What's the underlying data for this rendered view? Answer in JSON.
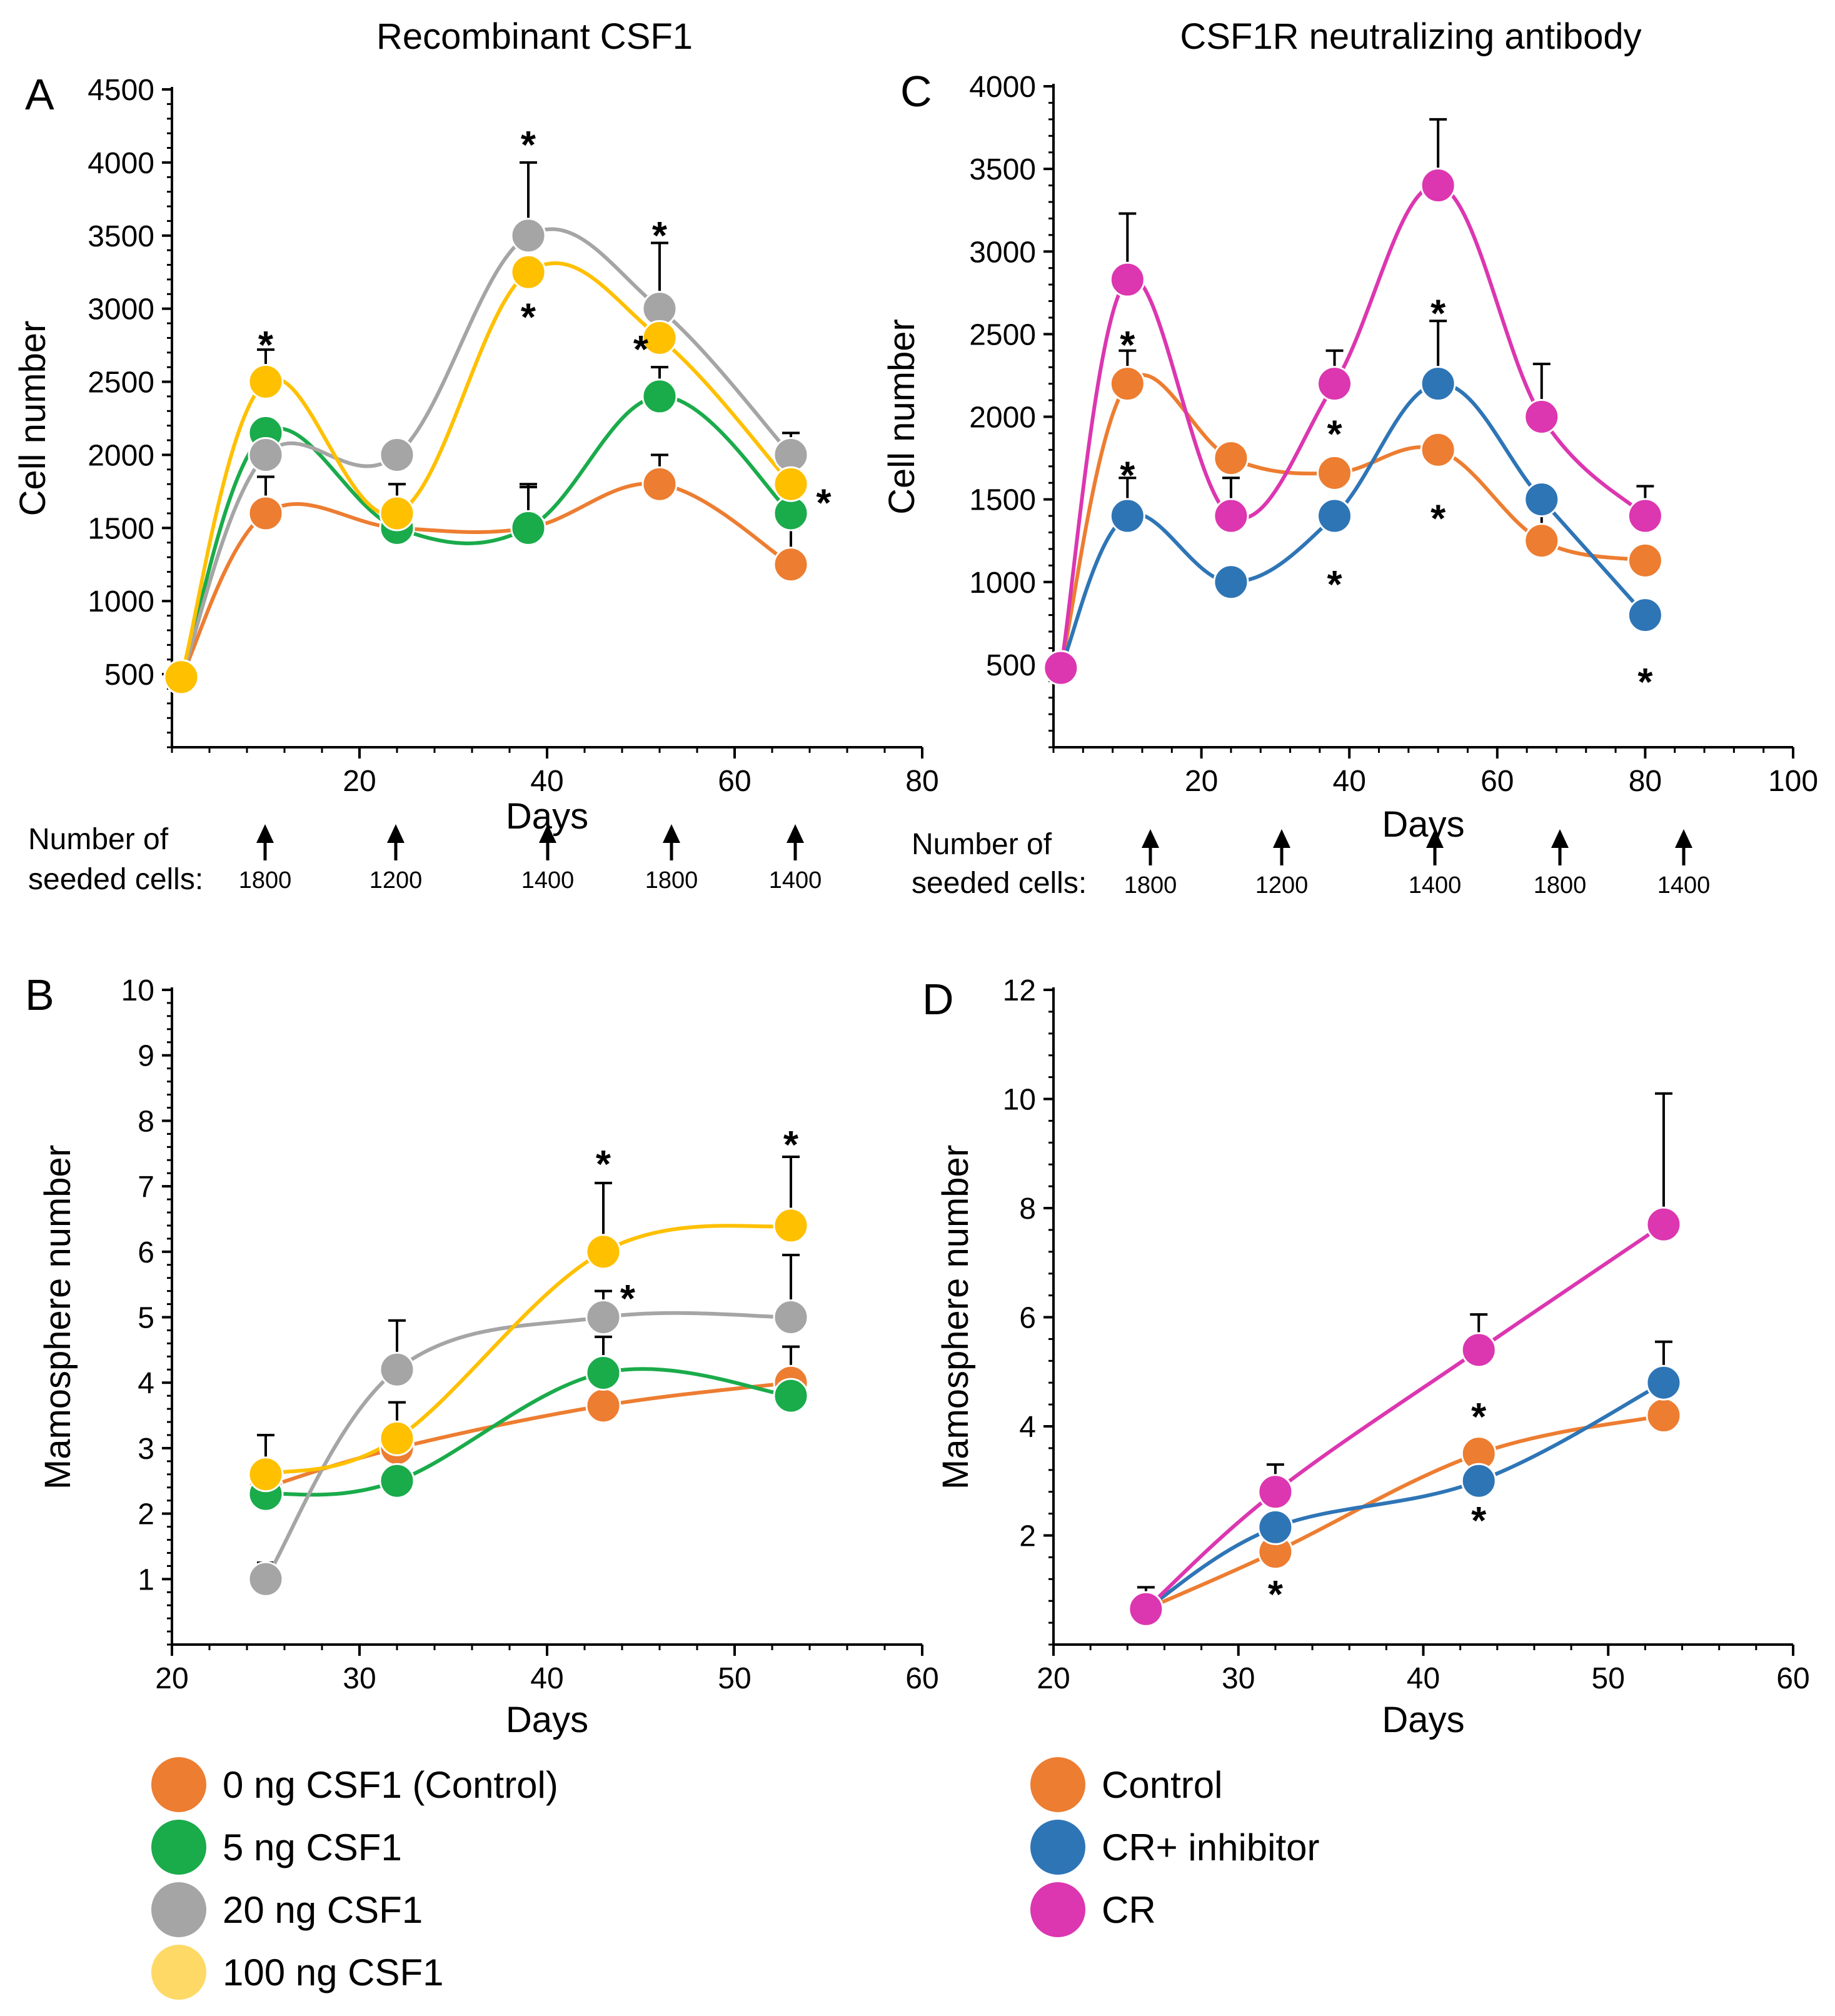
{
  "chart_data": [
    {
      "id": "A",
      "type": "line",
      "panel_letter": "A",
      "title": "Recombinant CSF1",
      "xlabel": "Days",
      "ylabel": "Cell number",
      "xlim": [
        0,
        80
      ],
      "ylim": [
        0,
        4500
      ],
      "xticks": [
        20,
        40,
        60,
        80
      ],
      "yticks": [
        500,
        1000,
        1500,
        2000,
        2500,
        3000,
        3500,
        4000,
        4500
      ],
      "series": [
        {
          "name": "0 ng CSF1 (Control)",
          "color": "#ED7D31",
          "x": [
            1,
            10,
            24,
            38,
            52,
            66
          ],
          "y": [
            480,
            1600,
            1500,
            1500,
            1800,
            1250
          ],
          "err": [
            0,
            250,
            300,
            300,
            200,
            250
          ]
        },
        {
          "name": "5 ng CSF1",
          "color": "#1AAB4B",
          "x": [
            1,
            10,
            24,
            38,
            52,
            66
          ],
          "y": [
            480,
            2150,
            1500,
            1500,
            2400,
            1600
          ],
          "err": [
            0,
            0,
            0,
            280,
            200,
            0
          ]
        },
        {
          "name": "20 ng CSF1",
          "color": "#A5A5A5",
          "x": [
            1,
            10,
            24,
            38,
            52,
            66
          ],
          "y": [
            480,
            2000,
            2000,
            3500,
            3000,
            2000
          ],
          "err": [
            0,
            0,
            0,
            500,
            450,
            150
          ]
        },
        {
          "name": "100 ng CSF1",
          "color": "#FFC000",
          "x": [
            1,
            10,
            24,
            38,
            52,
            66
          ],
          "y": [
            480,
            2500,
            1600,
            3250,
            2800,
            1800
          ],
          "err": [
            0,
            220,
            0,
            0,
            0,
            0
          ]
        }
      ],
      "annotations": [
        {
          "text": "*",
          "x": 10,
          "y": 2780
        },
        {
          "text": "*",
          "x": 38,
          "y": 4150
        },
        {
          "text": "*",
          "x": 38,
          "y": 2970
        },
        {
          "text": "*",
          "x": 52,
          "y": 3530
        },
        {
          "text": "*",
          "x": 50,
          "y": 2750
        },
        {
          "text": "*",
          "x": 69.5,
          "y": 1700
        }
      ],
      "seeded": {
        "label_line1": "Number of",
        "label_line2": "seeded cells:",
        "values": [
          "1800",
          "1200",
          "1400",
          "1800",
          "1400"
        ]
      }
    },
    {
      "id": "C",
      "type": "line",
      "panel_letter": "C",
      "title": "CSF1R neutralizing antibody",
      "xlabel": "Days",
      "ylabel": "Cell number",
      "xlim": [
        0,
        100
      ],
      "ylim": [
        0,
        4000
      ],
      "xticks": [
        20,
        40,
        60,
        80,
        100
      ],
      "yticks": [
        500,
        1000,
        1500,
        2000,
        2500,
        3000,
        3500,
        4000
      ],
      "series": [
        {
          "name": "Control",
          "color": "#ED7D31",
          "x": [
            1,
            10,
            24,
            38,
            52,
            66,
            80
          ],
          "y": [
            480,
            2200,
            1750,
            1660,
            1800,
            1250,
            1130
          ],
          "err": [
            0,
            200,
            0,
            0,
            0,
            250,
            0
          ]
        },
        {
          "name": "CR+ inhibitor",
          "color": "#2E75B6",
          "x": [
            1,
            10,
            24,
            38,
            52,
            66,
            80
          ],
          "y": [
            480,
            1400,
            1000,
            1400,
            2200,
            1500,
            800
          ],
          "err": [
            0,
            230,
            0,
            0,
            380,
            0,
            0
          ]
        },
        {
          "name": "CR",
          "color": "#DC36B0",
          "x": [
            1,
            10,
            24,
            38,
            52,
            66,
            80
          ],
          "y": [
            480,
            2830,
            1400,
            2200,
            3400,
            2000,
            1400
          ],
          "err": [
            0,
            400,
            230,
            200,
            400,
            320,
            180
          ]
        }
      ],
      "annotations": [
        {
          "text": "*",
          "x": 10,
          "y": 2460
        },
        {
          "text": "*",
          "x": 10,
          "y": 1670
        },
        {
          "text": "*",
          "x": 38,
          "y": 1920
        },
        {
          "text": "*",
          "x": 38,
          "y": 1010
        },
        {
          "text": "*",
          "x": 52,
          "y": 2650
        },
        {
          "text": "*",
          "x": 52,
          "y": 1410
        },
        {
          "text": "*",
          "x": 80,
          "y": 420
        }
      ],
      "seeded": {
        "label_line1": "Number of",
        "label_line2": "seeded cells:",
        "values": [
          "1800",
          "1200",
          "1400",
          "1800",
          "1400"
        ]
      }
    },
    {
      "id": "B",
      "type": "line",
      "panel_letter": "B",
      "title": "",
      "xlabel": "Days",
      "ylabel": "Mamosphere number",
      "xlim": [
        20,
        60
      ],
      "ylim": [
        0,
        10
      ],
      "xticks": [
        20,
        30,
        40,
        50,
        60
      ],
      "yticks": [
        1,
        2,
        3,
        4,
        5,
        6,
        7,
        8,
        9,
        10
      ],
      "series": [
        {
          "name": "0 ng CSF1 (Control)",
          "color": "#ED7D31",
          "x": [
            25,
            32,
            43,
            53
          ],
          "y": [
            2.4,
            3.0,
            3.65,
            4.0
          ],
          "err": [
            0,
            0,
            0,
            0.55
          ]
        },
        {
          "name": "5 ng CSF1",
          "color": "#1AAB4B",
          "x": [
            25,
            32,
            43,
            53
          ],
          "y": [
            2.3,
            2.5,
            4.15,
            3.8
          ],
          "err": [
            0,
            0,
            0.55,
            0
          ]
        },
        {
          "name": "20 ng CSF1",
          "color": "#A5A5A5",
          "x": [
            25,
            32,
            43,
            53
          ],
          "y": [
            1.0,
            4.2,
            5.0,
            5.0
          ],
          "err": [
            0.25,
            0.75,
            0.4,
            0.95
          ]
        },
        {
          "name": "100 ng CSF1",
          "color": "#FFC000",
          "x": [
            25,
            32,
            43,
            53
          ],
          "y": [
            2.6,
            3.15,
            6.0,
            6.4
          ],
          "err": [
            0.6,
            0.55,
            1.05,
            1.05
          ]
        }
      ],
      "annotations": [
        {
          "text": "*",
          "x": 43,
          "y": 7.4
        },
        {
          "text": "*",
          "x": 44.3,
          "y": 5.35
        },
        {
          "text": "*",
          "x": 53,
          "y": 7.7
        }
      ]
    },
    {
      "id": "D",
      "type": "line",
      "panel_letter": "D",
      "title": "",
      "xlabel": "Days",
      "ylabel": "Mamosphere number",
      "xlim": [
        20,
        60
      ],
      "ylim": [
        0,
        12
      ],
      "xticks": [
        20,
        30,
        40,
        50,
        60
      ],
      "yticks": [
        2,
        4,
        6,
        8,
        10,
        12
      ],
      "series": [
        {
          "name": "Control",
          "color": "#ED7D31",
          "x": [
            25,
            32,
            43,
            53
          ],
          "y": [
            0.65,
            1.7,
            3.5,
            4.2
          ],
          "err": [
            0,
            0,
            0,
            0.85
          ]
        },
        {
          "name": "CR+ inhibitor",
          "color": "#2E75B6",
          "x": [
            25,
            32,
            43,
            53
          ],
          "y": [
            0.65,
            2.15,
            3.0,
            4.8
          ],
          "err": [
            0,
            0,
            0,
            0.75
          ]
        },
        {
          "name": "CR",
          "color": "#DC36B0",
          "x": [
            25,
            32,
            43,
            53
          ],
          "y": [
            0.65,
            2.8,
            5.4,
            7.7
          ],
          "err": [
            0.4,
            0.5,
            0.65,
            2.4
          ]
        }
      ],
      "annotations": [
        {
          "text": "*",
          "x": 32,
          "y": 1.0
        },
        {
          "text": "*",
          "x": 43,
          "y": 4.25
        },
        {
          "text": "*",
          "x": 43,
          "y": 2.35
        }
      ]
    }
  ],
  "legends": {
    "left": [
      {
        "label": "0 ng CSF1 (Control)",
        "color": "#ED7D31"
      },
      {
        "label": "5 ng CSF1",
        "color": "#1AAB4B"
      },
      {
        "label": "20 ng CSF1",
        "color": "#A5A5A5"
      },
      {
        "label": "100 ng CSF1",
        "color": "#FFD966"
      }
    ],
    "right": [
      {
        "label": "Control",
        "color": "#ED7D31"
      },
      {
        "label": "CR+ inhibitor",
        "color": "#2E75B6"
      },
      {
        "label": "CR",
        "color": "#DC36B0"
      }
    ]
  }
}
